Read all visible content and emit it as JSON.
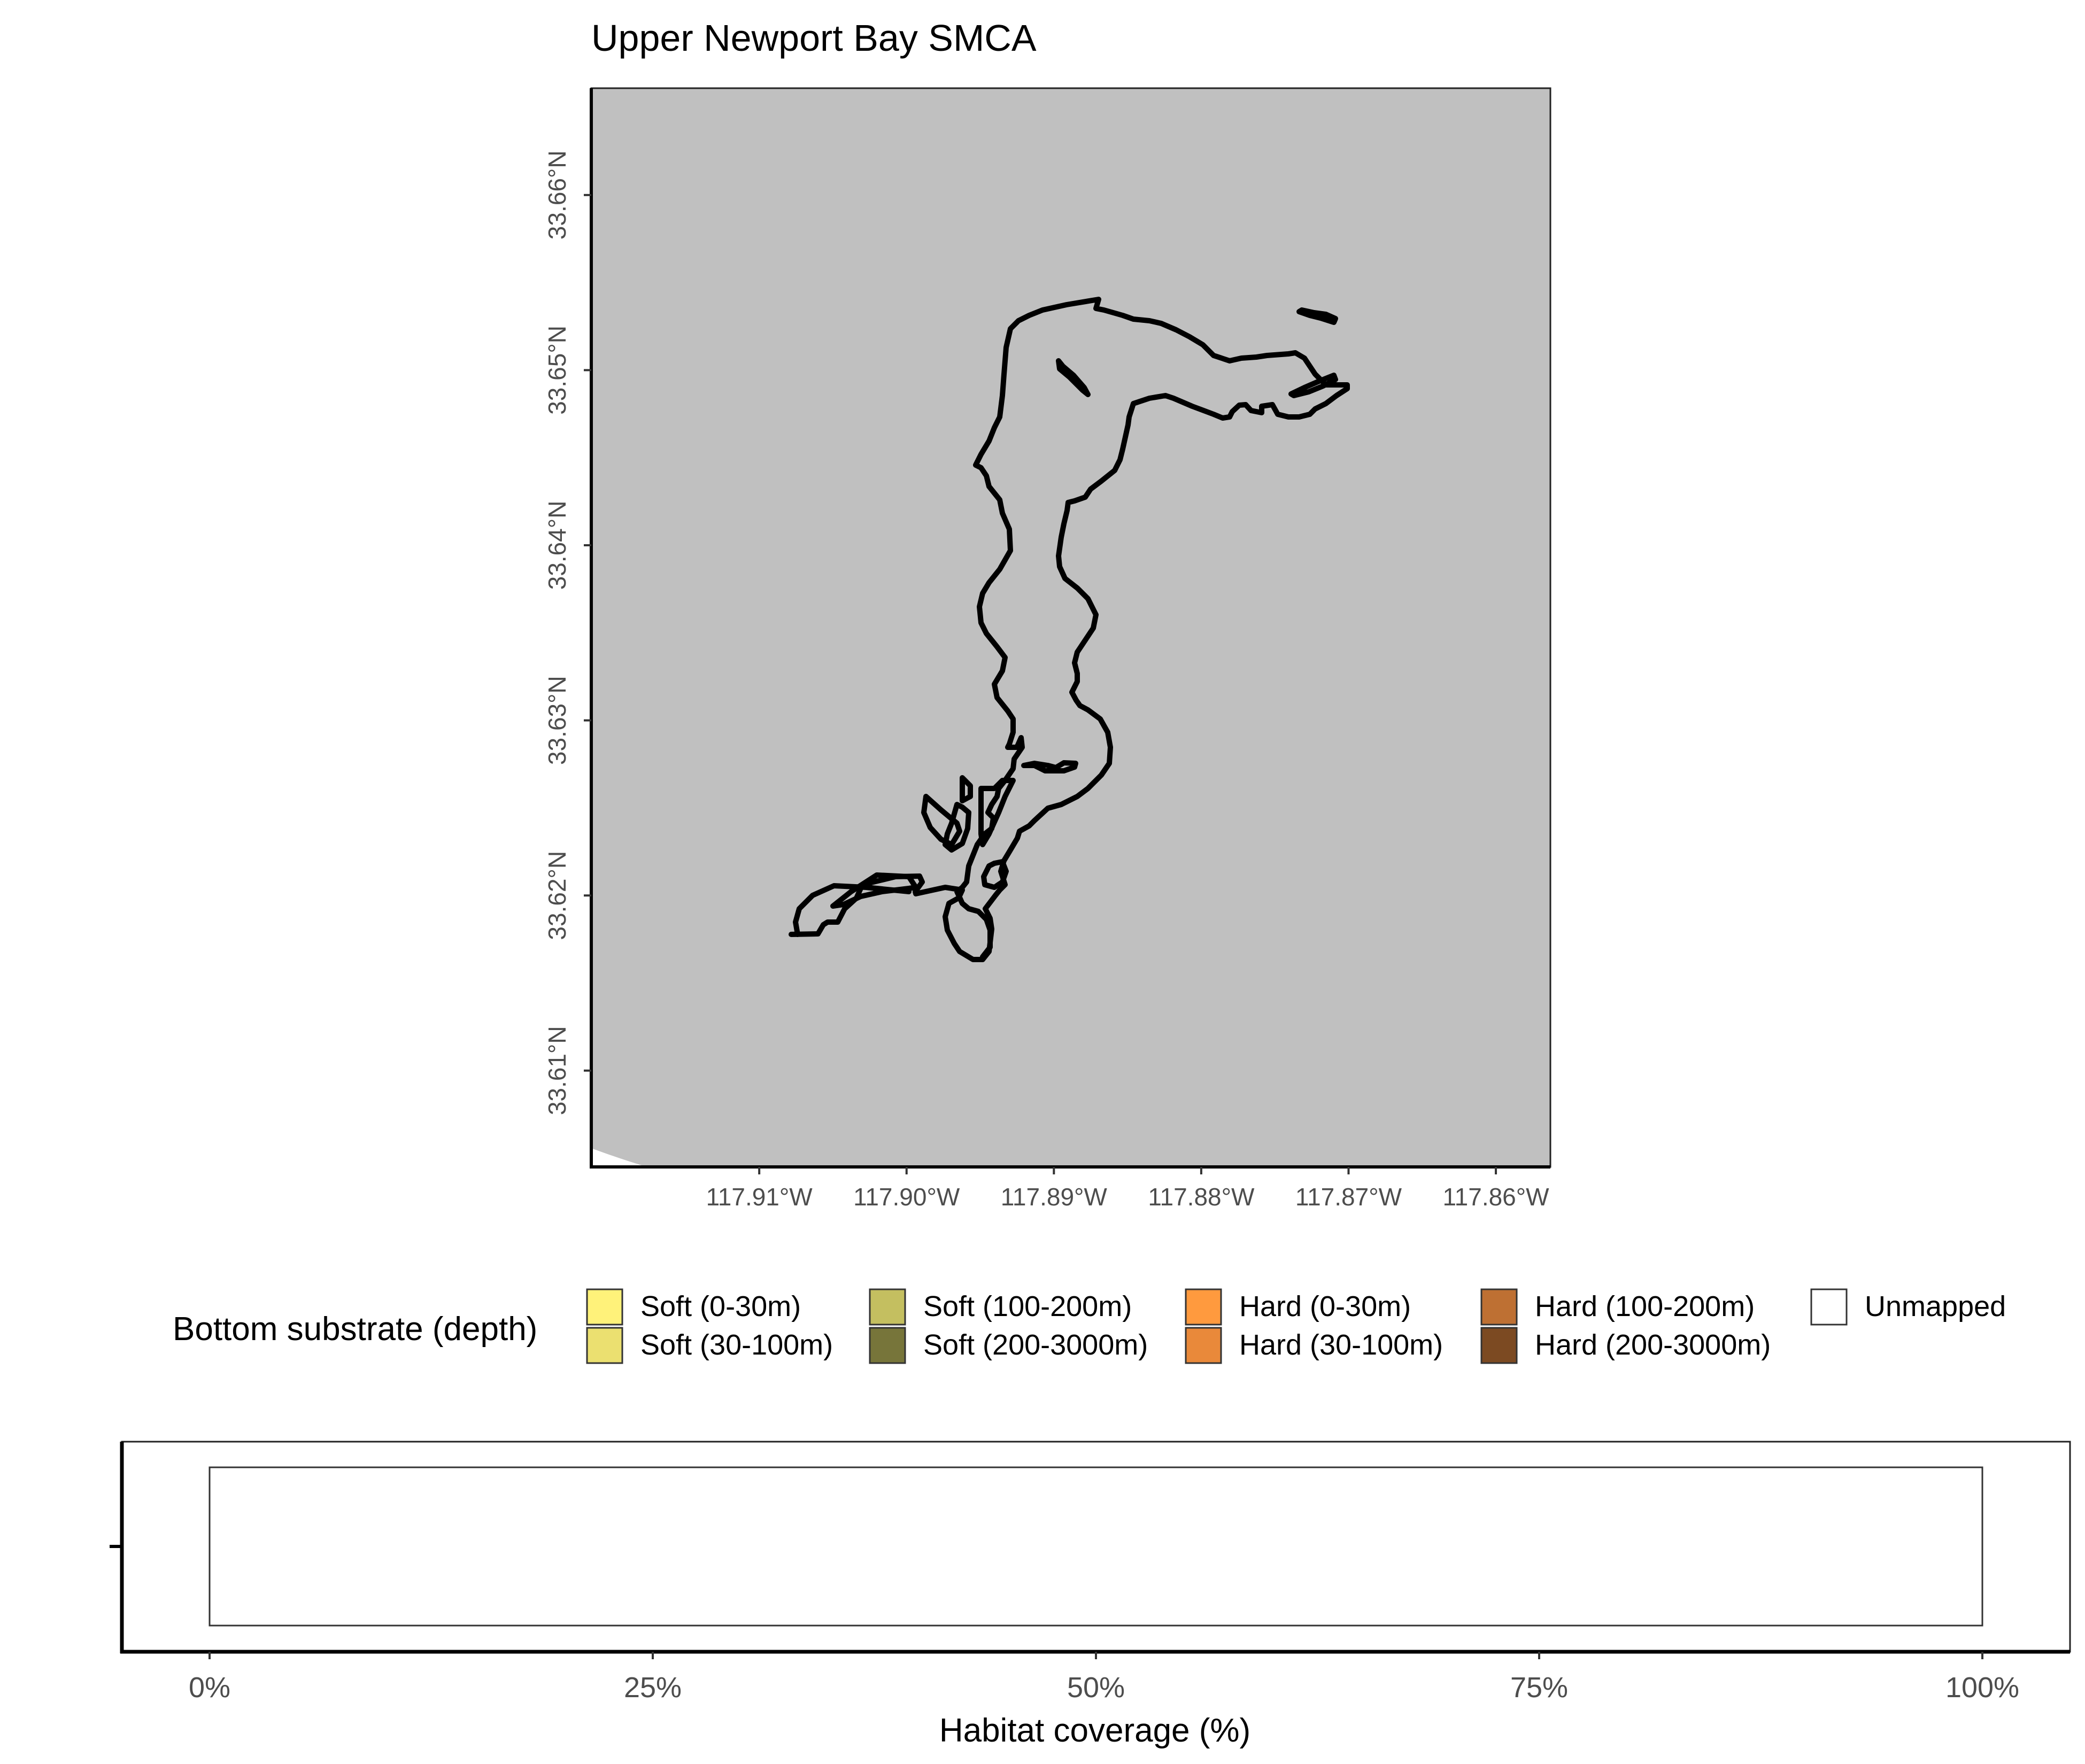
{
  "map": {
    "title": "Upper Newport Bay SMCA",
    "lon_ticks": [
      {
        "value": -117.91,
        "label": "117.91°W"
      },
      {
        "value": -117.9,
        "label": "117.90°W"
      },
      {
        "value": -117.89,
        "label": "117.89°W"
      },
      {
        "value": -117.88,
        "label": "117.88°W"
      },
      {
        "value": -117.87,
        "label": "117.87°W"
      },
      {
        "value": -117.86,
        "label": "117.86°W"
      }
    ],
    "lat_ticks": [
      {
        "value": 33.66,
        "label": "33.66°N"
      },
      {
        "value": 33.65,
        "label": "33.65°N"
      },
      {
        "value": 33.64,
        "label": "33.64°N"
      },
      {
        "value": 33.63,
        "label": "33.63°N"
      },
      {
        "value": 33.62,
        "label": "33.62°N"
      },
      {
        "value": 33.61,
        "label": "33.61°N"
      }
    ],
    "xlim": [
      -117.9214,
      -117.8563
    ],
    "ylim": [
      33.6045,
      33.6661
    ],
    "land_color": "#C0C0C0",
    "water_color": "#FFFFFF",
    "boundary_color": "#000000"
  },
  "legend": {
    "title": "Bottom substrate (depth)",
    "items": [
      {
        "label": "Soft (0-30m)",
        "color": "#FFF27A"
      },
      {
        "label": "Soft (30-100m)",
        "color": "#EBE070"
      },
      {
        "label": "Soft (100-200m)",
        "color": "#C4BF60"
      },
      {
        "label": "Soft (200-3000m)",
        "color": "#77753A"
      },
      {
        "label": "Hard (0-30m)",
        "color": "#FF9A3E"
      },
      {
        "label": "Hard (30-100m)",
        "color": "#E9893A"
      },
      {
        "label": "Hard (100-200m)",
        "color": "#BE7033"
      },
      {
        "label": "Hard (200-3000m)",
        "color": "#7C4A22"
      },
      {
        "label": "Unmapped",
        "color": "#FFFFFF"
      }
    ]
  },
  "chart_data": {
    "type": "bar",
    "orientation": "horizontal",
    "stacked": true,
    "categories": [
      ""
    ],
    "series": [
      {
        "name": "Unmapped",
        "values": [
          100
        ],
        "color": "#FFFFFF"
      }
    ],
    "xlabel": "Habitat coverage (%)",
    "ylabel": "",
    "xlim": [
      0,
      100
    ],
    "x_ticks": [
      {
        "value": 0,
        "label": "0%"
      },
      {
        "value": 25,
        "label": "25%"
      },
      {
        "value": 50,
        "label": "50%"
      },
      {
        "value": 75,
        "label": "75%"
      },
      {
        "value": 100,
        "label": "100%"
      }
    ]
  }
}
